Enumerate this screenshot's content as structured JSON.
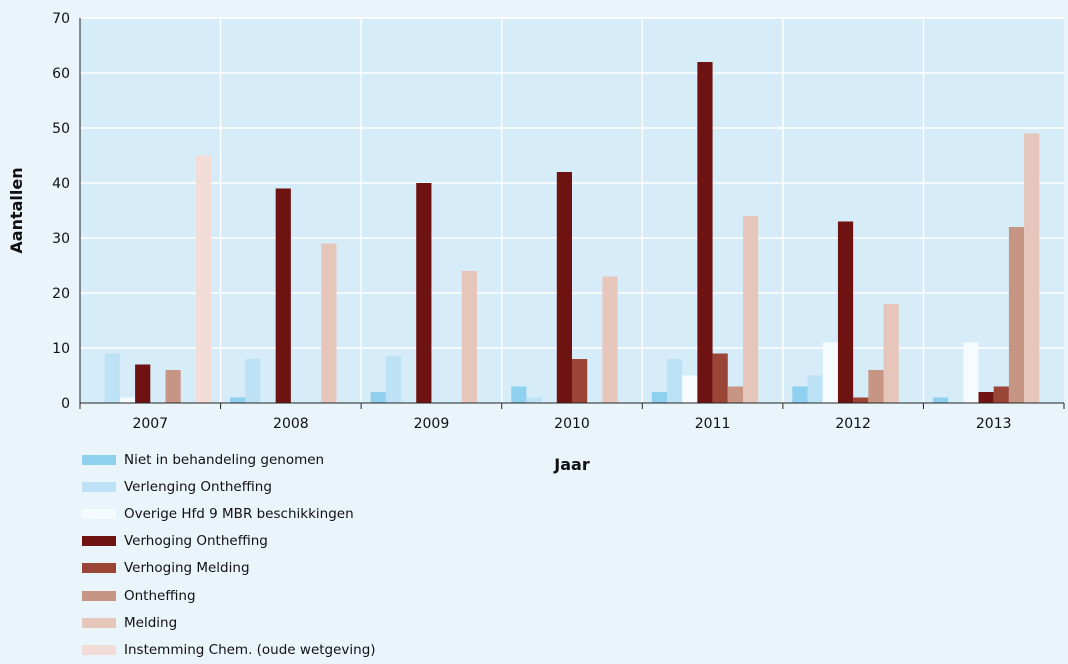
{
  "chart_data": {
    "type": "bar",
    "categories": [
      "2007",
      "2008",
      "2009",
      "2010",
      "2011",
      "2012",
      "2013"
    ],
    "xlabel": "Jaar",
    "ylabel": "Aantallen",
    "ylim": [
      0,
      70
    ],
    "yticks": [
      0,
      10,
      20,
      30,
      40,
      50,
      60,
      70
    ],
    "grid": true,
    "legend_position": "bottom-left",
    "series": [
      {
        "name": "Niet in behandeling genomen",
        "color": "#8fd0ee",
        "values": [
          0,
          1,
          2,
          3,
          2,
          3,
          1
        ]
      },
      {
        "name": "Verlenging Ontheffing",
        "color": "#bde2f5",
        "values": [
          9,
          8,
          8.5,
          1,
          8,
          5,
          0
        ]
      },
      {
        "name": "Overige Hfd 9 MBR beschikkingen",
        "color": "#f5fbff",
        "values": [
          1,
          0,
          0,
          0,
          5,
          11,
          11
        ]
      },
      {
        "name": "Verhoging Ontheffing",
        "color": "#6e1212",
        "values": [
          7,
          39,
          40,
          42,
          62,
          33,
          2
        ]
      },
      {
        "name": "Verhoging Melding",
        "color": "#9a4536",
        "values": [
          0,
          0,
          0,
          8,
          9,
          1,
          3
        ]
      },
      {
        "name": "Ontheffing",
        "color": "#c69583",
        "values": [
          6,
          0,
          0,
          0,
          3,
          6,
          32
        ]
      },
      {
        "name": "Melding",
        "color": "#e6c6ba",
        "values": [
          0,
          29,
          24,
          23,
          34,
          18,
          49
        ]
      },
      {
        "name": "Instemming Chem. (oude wetgeving)",
        "color": "#f1dcd8",
        "values": [
          45,
          0,
          0,
          0,
          0,
          0,
          0
        ]
      }
    ]
  }
}
